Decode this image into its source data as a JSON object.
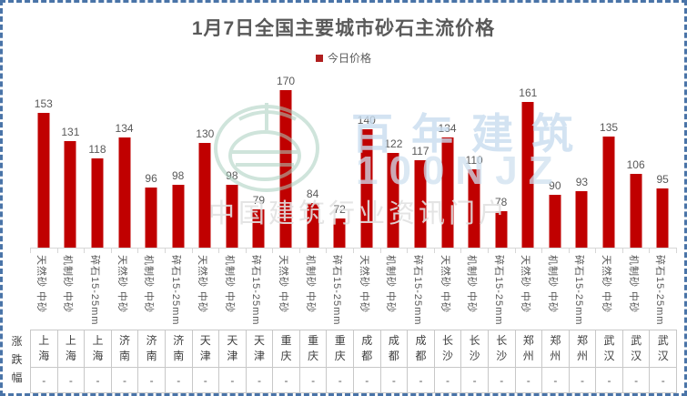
{
  "title": "1月7日全国主要城市砂石主流价格",
  "legend": {
    "label": "今日价格",
    "marker_color": "#B01E1E"
  },
  "chart_data": {
    "type": "bar",
    "title": "1月7日全国主要城市砂石主流价格",
    "series": [
      {
        "name": "今日价格",
        "values": [
          153,
          131,
          118,
          134,
          96,
          98,
          130,
          98,
          79,
          170,
          84,
          72,
          140,
          122,
          117,
          134,
          110,
          78,
          161,
          90,
          93,
          135,
          106,
          95
        ]
      }
    ],
    "categories_spec": [
      "天然砂 中砂",
      "机制砂 中砂",
      "碎石15-25mm",
      "天然砂 中砂",
      "机制砂 中砂",
      "碎石15-25mm",
      "天然砂 中砂",
      "机制砂 中砂",
      "碎石15-25mm",
      "天然砂 中砂",
      "机制砂 中砂",
      "碎石15-25mm",
      "天然砂 中砂",
      "机制砂 中砂",
      "碎石15-25mm",
      "天然砂 中砂",
      "机制砂 中砂",
      "碎石15-25mm",
      "天然砂 中砂",
      "机制砂 中砂",
      "碎石15-25mm",
      "天然砂 中砂",
      "机制砂 中砂",
      "碎石15-25mm"
    ],
    "categories_city": [
      "上海",
      "上海",
      "上海",
      "济南",
      "济南",
      "济南",
      "天津",
      "天津",
      "天津",
      "重庆",
      "重庆",
      "重庆",
      "成都",
      "成都",
      "成都",
      "长沙",
      "长沙",
      "长沙",
      "郑州",
      "郑州",
      "郑州",
      "武汉",
      "武汉",
      "武汉"
    ],
    "ylim": [
      50,
      180
    ],
    "bar_color": "#C00000",
    "grid": false,
    "legend_position": "top",
    "data_labels": true
  },
  "footer_table": {
    "row_label": "涨跌幅",
    "changes": [
      "-",
      "-",
      "-",
      "-",
      "-",
      "-",
      "-",
      "-",
      "-",
      "-",
      "-",
      "-",
      "-",
      "-",
      "-",
      "-",
      "-",
      "-",
      "-",
      "-",
      "-",
      "-",
      "-",
      "-"
    ]
  },
  "watermark": {
    "brand": "百年建筑",
    "brand_code": "100NJZ",
    "tagline": "中国建筑行业资讯门户"
  },
  "colors": {
    "bar": "#C00000",
    "text": "#595959",
    "border_dash": "#4A74A8",
    "table_border": "#C8C8C8",
    "watermark_green": "#A9CFBE",
    "watermark_blue": "#C9DDEF",
    "watermark_gray": "#E2E2E2"
  }
}
